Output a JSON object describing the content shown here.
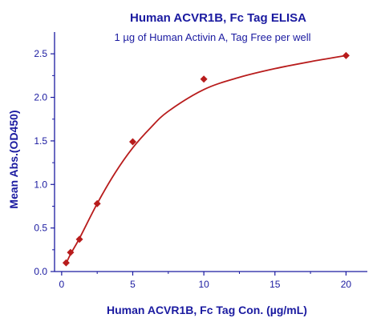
{
  "chart_data": {
    "type": "scatter",
    "title": "Human ACVR1B, Fc Tag ELISA",
    "subtitle": "1 µg of Human Activin A, Tag Free per well",
    "xlabel": "Human ACVR1B, Fc Tag Con. (µg/mL)",
    "ylabel": "Mean Abs.(OD450)",
    "xlim": [
      -0.5,
      21.5
    ],
    "ylim": [
      0,
      2.75
    ],
    "xticks": [
      "0",
      "5",
      "10",
      "15",
      "20"
    ],
    "yticks": [
      "0.0",
      "0.5",
      "1.0",
      "1.5",
      "2.0",
      "2.5"
    ],
    "grid": false,
    "series": [
      {
        "points": [
          {
            "x": 0.3125,
            "y": 0.1
          },
          {
            "x": 0.625,
            "y": 0.22
          },
          {
            "x": 1.25,
            "y": 0.37
          },
          {
            "x": 2.5,
            "y": 0.78
          },
          {
            "x": 5,
            "y": 1.49
          },
          {
            "x": 10,
            "y": 2.21
          },
          {
            "x": 20,
            "y": 2.48
          }
        ],
        "fit_curve": [
          {
            "x": 0.3125,
            "y": 0.09
          },
          {
            "x": 0.625,
            "y": 0.2
          },
          {
            "x": 1.25,
            "y": 0.38
          },
          {
            "x": 2.5,
            "y": 0.78
          },
          {
            "x": 3.75,
            "y": 1.13
          },
          {
            "x": 5,
            "y": 1.42
          },
          {
            "x": 6.25,
            "y": 1.65
          },
          {
            "x": 7.5,
            "y": 1.84
          },
          {
            "x": 10,
            "y": 2.09
          },
          {
            "x": 12.5,
            "y": 2.23
          },
          {
            "x": 15,
            "y": 2.33
          },
          {
            "x": 17.5,
            "y": 2.41
          },
          {
            "x": 20,
            "y": 2.48
          }
        ]
      }
    ],
    "colors": {
      "text": "#1a1aa0",
      "axis": "#1a1aa0",
      "series": "#b81c1c"
    }
  }
}
